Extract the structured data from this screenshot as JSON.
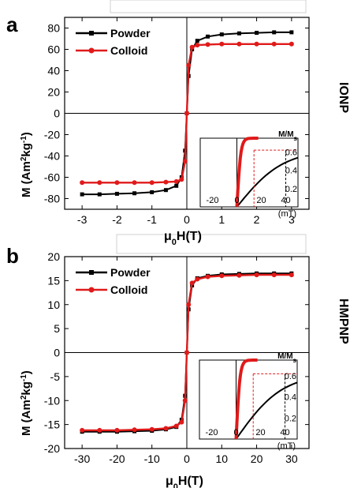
{
  "panels": [
    {
      "panel_label": "a",
      "side_label": "IONP",
      "ylabel_main": "M (Am",
      "ylabel_sup1": "2",
      "ylabel_mid": "kg",
      "ylabel_sup2": "-1",
      "ylabel_end": ")",
      "xlabel_mu": "μ",
      "xlabel_sub": "0",
      "xlabel_end": "H(T)",
      "legend": [
        "Powder",
        "Colloid"
      ],
      "inset": {
        "ylabel": "M/M",
        "ylabel_sub": "s",
        "xticks": [
          "-20",
          "0",
          "20",
          "40"
        ],
        "xunit": "(mT)",
        "yticks": [
          "0.6",
          "0.4",
          "0.2"
        ]
      }
    },
    {
      "panel_label": "b",
      "side_label": "HMPNP",
      "ylabel_main": "M (Am",
      "ylabel_sup1": "2",
      "ylabel_mid": "kg",
      "ylabel_sup2": "-1",
      "ylabel_end": ")",
      "xlabel_mu": "μ",
      "xlabel_sub": "0",
      "xlabel_end": "H(T)",
      "legend": [
        "Powder",
        "Colloid"
      ],
      "inset": {
        "ylabel": "M/M",
        "ylabel_sub": "s",
        "xticks": [
          "-20",
          "0",
          "20",
          "40"
        ],
        "xunit": "(mT)",
        "yticks": [
          "0.6",
          "0.4",
          "0.2"
        ]
      }
    }
  ],
  "colors": {
    "powder": "#000000",
    "colloid": "#e01a1a"
  },
  "chart_data": [
    {
      "type": "line",
      "xlabel": "μ0H(T)",
      "ylabel": "M (Am2kg-1)",
      "xlim": [
        -3.5,
        3.5
      ],
      "ylim": [
        -90,
        90
      ],
      "xticks": [
        -3,
        -2,
        -1,
        0,
        1,
        2,
        3
      ],
      "yticks": [
        -80,
        -60,
        -40,
        -20,
        0,
        20,
        40,
        60,
        80
      ],
      "series": [
        {
          "name": "Powder",
          "x": [
            -3.0,
            -2.5,
            -2.0,
            -1.5,
            -1.0,
            -0.6,
            -0.3,
            -0.15,
            -0.05,
            0.0,
            0.05,
            0.15,
            0.3,
            0.6,
            1.0,
            1.5,
            2.0,
            2.5,
            3.0
          ],
          "y": [
            -76,
            -76,
            -75.5,
            -75,
            -74,
            -72,
            -68,
            -60,
            -35,
            0,
            35,
            60,
            68,
            72,
            74,
            75,
            75.5,
            76,
            76
          ]
        },
        {
          "name": "Colloid",
          "x": [
            -3.0,
            -2.5,
            -2.0,
            -1.5,
            -1.0,
            -0.6,
            -0.3,
            -0.15,
            -0.05,
            0.0,
            0.05,
            0.15,
            0.3,
            0.6,
            1.0,
            1.5,
            2.0,
            2.5,
            3.0
          ],
          "y": [
            -65,
            -65,
            -65,
            -65,
            -65,
            -64.5,
            -64,
            -62,
            -45,
            0,
            45,
            62,
            64,
            64.5,
            65,
            65,
            65,
            65,
            65
          ]
        }
      ]
    },
    {
      "type": "line",
      "xlabel": "μ0H(T)",
      "ylabel": "M (Am2kg-1)",
      "xlim": [
        -35,
        35
      ],
      "ylim": [
        -20,
        20
      ],
      "xticks": [
        -30,
        -20,
        -10,
        0,
        10,
        20,
        30
      ],
      "yticks": [
        -20,
        -15,
        -10,
        -5,
        0,
        5,
        10,
        15,
        20
      ],
      "series": [
        {
          "name": "Powder",
          "x": [
            -30,
            -25,
            -20,
            -15,
            -10,
            -6,
            -3,
            -1.5,
            -0.5,
            0,
            0.5,
            1.5,
            3,
            6,
            10,
            15,
            20,
            25,
            30
          ],
          "y": [
            -16.5,
            -16.5,
            -16.5,
            -16.4,
            -16.3,
            -16,
            -15.5,
            -14,
            -9,
            0,
            9,
            14,
            15.5,
            16,
            16.3,
            16.4,
            16.5,
            16.5,
            16.5
          ]
        },
        {
          "name": "Colloid",
          "x": [
            -30,
            -25,
            -20,
            -15,
            -10,
            -6,
            -3,
            -1.5,
            -0.5,
            0,
            0.5,
            1.5,
            3,
            6,
            10,
            15,
            20,
            25,
            30
          ],
          "y": [
            -16.2,
            -16.2,
            -16.2,
            -16.1,
            -16,
            -15.8,
            -15.3,
            -14.5,
            -10,
            0,
            10,
            14.5,
            15.3,
            15.8,
            16,
            16.1,
            16.2,
            16.2,
            16.2
          ]
        }
      ]
    }
  ]
}
